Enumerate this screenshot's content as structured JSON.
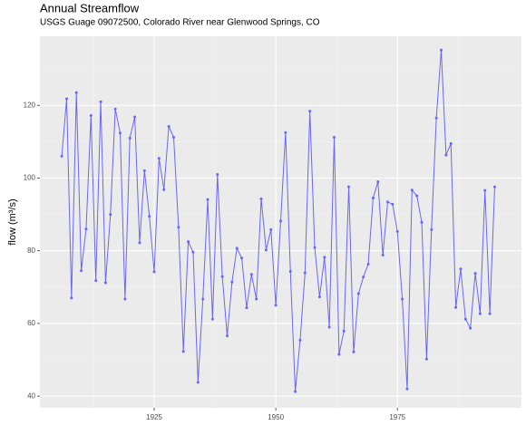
{
  "chart_data": {
    "type": "line",
    "title": "Annual Streamflow",
    "subtitle": "USGS Guage 09072500, Colorado River near Glenwood Springs, CO",
    "y_label": "flow (m³/s)",
    "x": [
      1906,
      1907,
      1908,
      1909,
      1910,
      1911,
      1912,
      1913,
      1914,
      1915,
      1916,
      1917,
      1918,
      1919,
      1920,
      1921,
      1922,
      1923,
      1924,
      1925,
      1926,
      1927,
      1928,
      1929,
      1930,
      1931,
      1932,
      1933,
      1934,
      1935,
      1936,
      1937,
      1938,
      1939,
      1940,
      1941,
      1942,
      1943,
      1944,
      1945,
      1946,
      1947,
      1948,
      1949,
      1950,
      1951,
      1952,
      1953,
      1954,
      1955,
      1956,
      1957,
      1958,
      1959,
      1960,
      1961,
      1962,
      1963,
      1964,
      1965,
      1966,
      1967,
      1968,
      1969,
      1970,
      1971,
      1972,
      1973,
      1974,
      1975,
      1976,
      1977,
      1978,
      1979,
      1980,
      1981,
      1982,
      1983,
      1984,
      1985,
      1986,
      1987,
      1988,
      1989,
      1990,
      1991,
      1992,
      1993,
      1994,
      1995
    ],
    "series": [
      {
        "name": "flow",
        "color": "#6666ff",
        "values": [
          106,
          121.8,
          67,
          123.5,
          74.5,
          86,
          117.2,
          71.8,
          121,
          71.2,
          90,
          119,
          112.4,
          66.7,
          111,
          116.8,
          82.2,
          102,
          89.5,
          74.2,
          105.4,
          96.8,
          114.2,
          111.2,
          86.5,
          52.3,
          82.5,
          79.6,
          43.8,
          66.7,
          94.1,
          61.2,
          101,
          72.9,
          56.6,
          71.4,
          80.7,
          78,
          64.3,
          73.5,
          66.7,
          94.3,
          80.2,
          85.8,
          65,
          88.2,
          112.5,
          74.3,
          41.3,
          55.4,
          73.9,
          118.4,
          80.9,
          67.3,
          78.2,
          59,
          111.2,
          51.5,
          57.9,
          97.6,
          52.2,
          68.2,
          72.8,
          76.3,
          94.5,
          99,
          78.8,
          93.4,
          92.8,
          85.3,
          66.7,
          42,
          96.7,
          95.1,
          87.8,
          50.2,
          85.8,
          116.5,
          135.2,
          106.3,
          109.5,
          64.4,
          75,
          61.2,
          58.7,
          73.8,
          62.7,
          96.6,
          62.7,
          97.6
        ]
      }
    ],
    "xlim": [
      1901.5,
      2000.5
    ],
    "ylim": [
      36.8,
      139
    ],
    "xticks": [
      1925,
      1950,
      1975
    ],
    "yticks": [
      40,
      60,
      80,
      100,
      120
    ],
    "grid": true,
    "minor_grid": true,
    "points": true
  }
}
